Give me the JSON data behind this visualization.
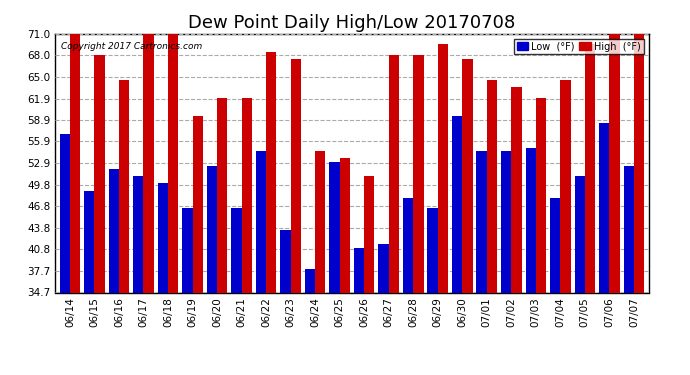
{
  "title": "Dew Point Daily High/Low 20170708",
  "copyright": "Copyright 2017 Cartronics.com",
  "categories": [
    "06/14",
    "06/15",
    "06/16",
    "06/17",
    "06/18",
    "06/19",
    "06/20",
    "06/21",
    "06/22",
    "06/23",
    "06/24",
    "06/25",
    "06/26",
    "06/27",
    "06/28",
    "06/29",
    "06/30",
    "07/01",
    "07/02",
    "07/03",
    "07/04",
    "07/05",
    "07/06",
    "07/07"
  ],
  "low_values": [
    57.0,
    49.0,
    52.0,
    51.0,
    50.0,
    46.5,
    52.5,
    46.5,
    54.5,
    43.5,
    38.0,
    53.0,
    41.0,
    41.5,
    48.0,
    46.5,
    59.5,
    54.5,
    54.5,
    55.0,
    48.0,
    51.0,
    58.5,
    52.5
  ],
  "high_values": [
    71.0,
    68.0,
    64.5,
    71.0,
    71.0,
    59.5,
    62.0,
    62.0,
    68.5,
    67.5,
    54.5,
    53.5,
    51.0,
    68.0,
    68.0,
    69.5,
    67.5,
    64.5,
    63.5,
    62.0,
    64.5,
    69.5,
    71.0,
    71.0
  ],
  "low_color": "#0000cc",
  "high_color": "#cc0000",
  "ylim": [
    34.7,
    71.0
  ],
  "ybase": 34.7,
  "yticks": [
    34.7,
    37.7,
    40.8,
    43.8,
    46.8,
    49.8,
    52.9,
    55.9,
    58.9,
    61.9,
    65.0,
    68.0,
    71.0
  ],
  "background_color": "#ffffff",
  "grid_color": "#aaaaaa",
  "title_fontsize": 13,
  "tick_fontsize": 7.5,
  "bar_width": 0.42
}
